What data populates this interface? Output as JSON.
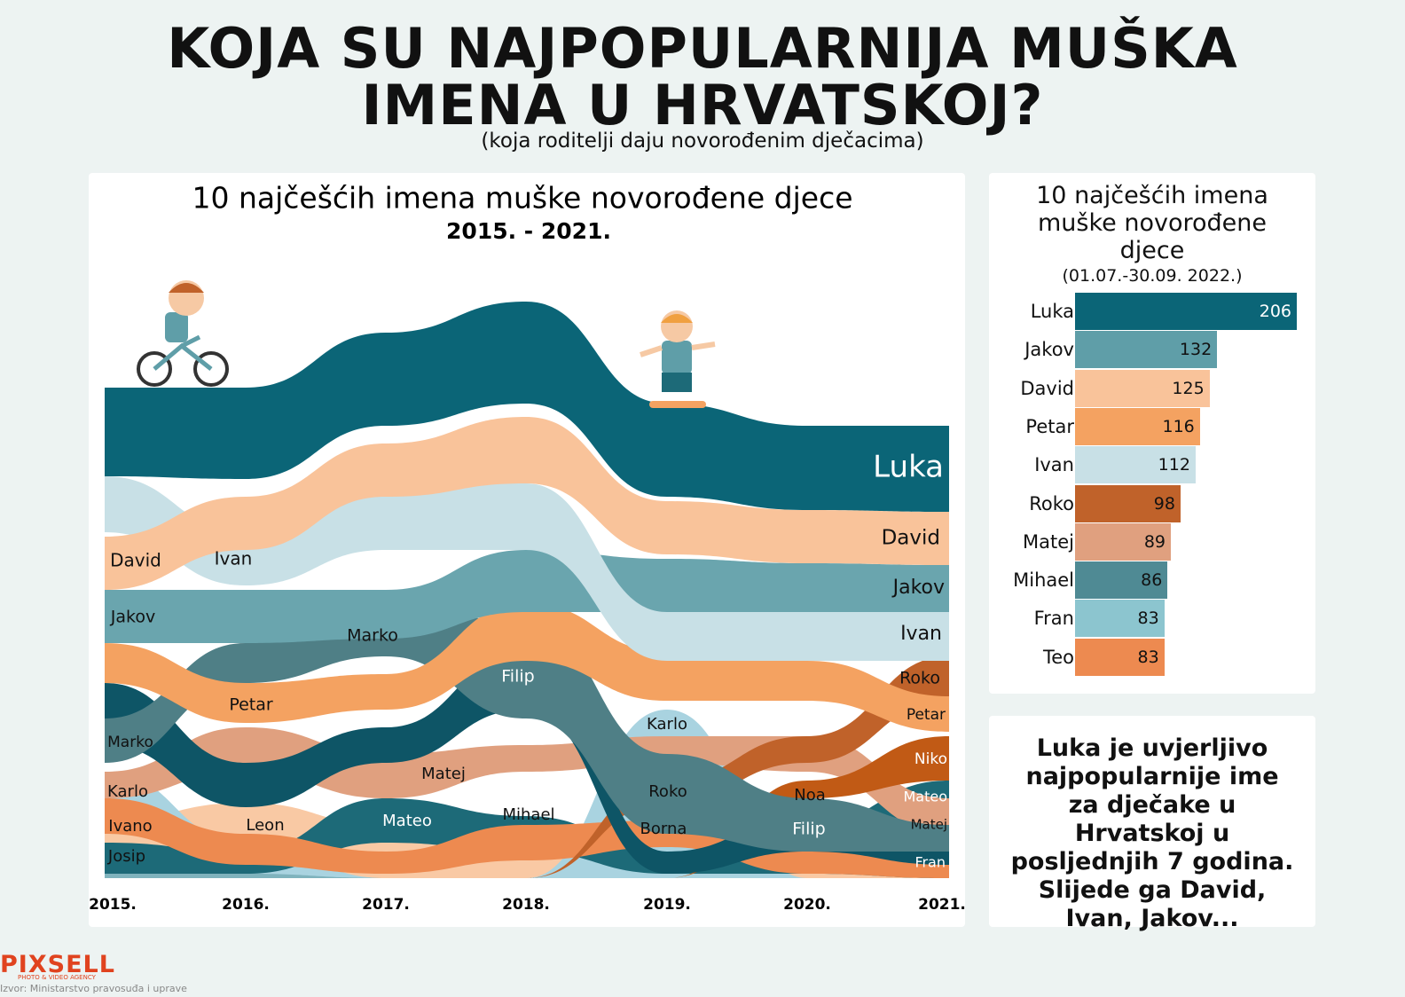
{
  "header": {
    "title_line1": "KOJA SU NAJPOPULARNIJA MUŠKA",
    "title_line2": "IMENA U HRVATSKOJ?",
    "subtitle": "(koja roditelji daju novorođenim dječacima)"
  },
  "stream": {
    "title": "10 najčešćih imena muške novorođene djece",
    "subtitle": "2015. - 2021.",
    "years": [
      "2015.",
      "2016.",
      "2017.",
      "2018.",
      "2019.",
      "2020.",
      "2021."
    ],
    "labels": [
      "Luka",
      "David",
      "Jakov",
      "Ivan",
      "Roko",
      "Petar",
      "Niko",
      "Mateo",
      "Matej",
      "Fran",
      "David",
      "Ivan",
      "Jakov",
      "Marko",
      "Petar",
      "Filip",
      "Marko",
      "Karlo",
      "Matej",
      "Karlo",
      "Roko",
      "Noa",
      "Mateo",
      "Mihael",
      "Ivano",
      "Leon",
      "Borna",
      "Filip",
      "Josip"
    ]
  },
  "chart_data": {
    "type": "bar",
    "title": "10 najčešćih imena muške novorođene djece",
    "subtitle": "(01.07.-30.09. 2022.)",
    "categories": [
      "Luka",
      "Jakov",
      "David",
      "Petar",
      "Ivan",
      "Roko",
      "Matej",
      "Mihael",
      "Fran",
      "Teo"
    ],
    "values": [
      206,
      132,
      125,
      116,
      112,
      98,
      89,
      86,
      83,
      83
    ],
    "colors": [
      "#0b6577",
      "#5f9ea8",
      "#f9c39a",
      "#f4a261",
      "#c8e0e6",
      "#c0622a",
      "#e0a07f",
      "#4f8a94",
      "#8cc5cf",
      "#ed8a50"
    ]
  },
  "note": "Luka je uvjerljivo najpopularnije ime za dječake u Hrvatskoj u posljednjih 7 godina. Slijede ga David, Ivan, Jakov...",
  "footer": {
    "logo": "PIXSELL",
    "tagline": "PHOTO & VIDEO AGENCY",
    "source": "Izvor: Ministarstvo pravosuđa i uprave"
  }
}
